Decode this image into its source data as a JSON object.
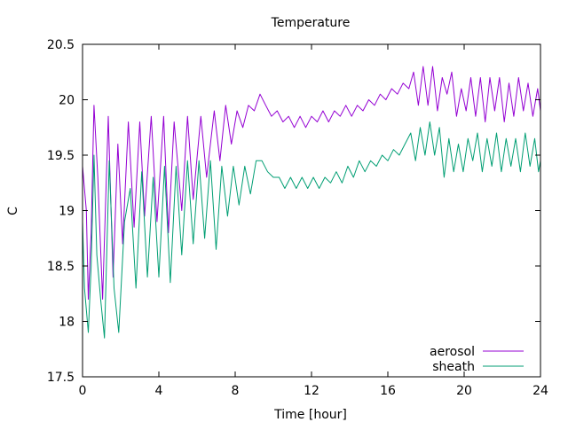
{
  "chart_data": {
    "type": "line",
    "title": "Temperature",
    "xlabel": "Time [hour]",
    "ylabel": "C",
    "xlim": [
      0,
      24
    ],
    "ylim": [
      17.5,
      20.5
    ],
    "xticks": [
      0,
      4,
      8,
      12,
      16,
      20,
      24
    ],
    "xtick_labels": [
      "0",
      "4",
      "8",
      "12",
      "16",
      "20",
      "24"
    ],
    "yticks": [
      17.5,
      18,
      18.5,
      19,
      19.5,
      20,
      20.5
    ],
    "ytick_labels": [
      "17.5",
      "18",
      "18.5",
      "19",
      "19.5",
      "20",
      "20.5"
    ],
    "grid": false,
    "legend_position": "bottom-right",
    "series": [
      {
        "name": "aerosol",
        "color": "#9400d3",
        "x": [
          0.0,
          0.2,
          0.3,
          0.45,
          0.6,
          0.8,
          1.05,
          1.35,
          1.6,
          1.85,
          2.1,
          2.4,
          2.7,
          3.0,
          3.25,
          3.6,
          3.9,
          4.25,
          4.5,
          4.8,
          5.2,
          5.5,
          5.8,
          6.2,
          6.5,
          6.9,
          7.2,
          7.5,
          7.8,
          8.1,
          8.4,
          8.7,
          9.0,
          9.3,
          9.6,
          9.9,
          10.2,
          10.5,
          10.8,
          11.1,
          11.4,
          11.7,
          12.0,
          12.3,
          12.6,
          12.9,
          13.2,
          13.5,
          13.8,
          14.1,
          14.4,
          14.7,
          15.0,
          15.3,
          15.6,
          15.9,
          16.2,
          16.5,
          16.8,
          17.1,
          17.35,
          17.6,
          17.85,
          18.1,
          18.35,
          18.6,
          18.85,
          19.1,
          19.35,
          19.6,
          19.85,
          20.1,
          20.35,
          20.6,
          20.85,
          21.1,
          21.35,
          21.6,
          21.85,
          22.1,
          22.35,
          22.6,
          22.85,
          23.1,
          23.35,
          23.6,
          23.85,
          24.0
        ],
        "y": [
          19.4,
          19.0,
          18.2,
          18.8,
          19.95,
          19.3,
          18.2,
          19.85,
          18.4,
          19.6,
          18.7,
          19.8,
          18.85,
          19.8,
          18.95,
          19.85,
          18.9,
          19.85,
          18.8,
          19.8,
          19.0,
          19.85,
          19.1,
          19.85,
          19.3,
          19.9,
          19.45,
          19.95,
          19.6,
          19.9,
          19.75,
          19.95,
          19.9,
          20.05,
          19.95,
          19.85,
          19.9,
          19.8,
          19.85,
          19.75,
          19.85,
          19.75,
          19.85,
          19.8,
          19.9,
          19.8,
          19.9,
          19.85,
          19.95,
          19.85,
          19.95,
          19.9,
          20.0,
          19.95,
          20.05,
          20.0,
          20.1,
          20.05,
          20.15,
          20.1,
          20.25,
          19.95,
          20.3,
          19.95,
          20.3,
          19.9,
          20.2,
          20.05,
          20.25,
          19.85,
          20.1,
          19.9,
          20.2,
          19.85,
          20.2,
          19.8,
          20.2,
          19.9,
          20.2,
          19.8,
          20.15,
          19.85,
          20.2,
          19.9,
          20.15,
          19.85,
          20.1,
          19.9
        ]
      },
      {
        "name": "sheath",
        "color": "#009e73",
        "x": [
          0.0,
          0.1,
          0.3,
          0.45,
          0.6,
          0.75,
          0.95,
          1.15,
          1.4,
          1.65,
          1.9,
          2.2,
          2.5,
          2.8,
          3.1,
          3.4,
          3.7,
          4.0,
          4.3,
          4.6,
          4.9,
          5.2,
          5.5,
          5.8,
          6.1,
          6.4,
          6.7,
          7.0,
          7.3,
          7.6,
          7.9,
          8.2,
          8.5,
          8.8,
          9.1,
          9.4,
          9.7,
          10.0,
          10.3,
          10.6,
          10.9,
          11.2,
          11.5,
          11.8,
          12.1,
          12.4,
          12.7,
          13.0,
          13.3,
          13.6,
          13.9,
          14.2,
          14.5,
          14.8,
          15.1,
          15.4,
          15.7,
          16.0,
          16.3,
          16.6,
          16.9,
          17.2,
          17.45,
          17.7,
          17.95,
          18.2,
          18.45,
          18.7,
          18.95,
          19.2,
          19.45,
          19.7,
          19.95,
          20.2,
          20.45,
          20.7,
          20.95,
          21.2,
          21.45,
          21.7,
          21.95,
          22.2,
          22.45,
          22.7,
          22.95,
          23.2,
          23.45,
          23.7,
          23.9,
          24.0
        ],
        "y": [
          18.9,
          18.3,
          17.9,
          18.5,
          19.5,
          18.6,
          18.2,
          17.85,
          19.45,
          18.3,
          17.9,
          18.9,
          19.2,
          18.3,
          19.35,
          18.4,
          19.3,
          18.4,
          19.4,
          18.35,
          19.4,
          18.6,
          19.45,
          18.7,
          19.45,
          18.75,
          19.45,
          18.65,
          19.4,
          18.95,
          19.4,
          19.05,
          19.4,
          19.15,
          19.45,
          19.45,
          19.35,
          19.3,
          19.3,
          19.2,
          19.3,
          19.2,
          19.3,
          19.2,
          19.3,
          19.2,
          19.3,
          19.25,
          19.35,
          19.25,
          19.4,
          19.3,
          19.45,
          19.35,
          19.45,
          19.4,
          19.5,
          19.45,
          19.55,
          19.5,
          19.6,
          19.7,
          19.45,
          19.75,
          19.5,
          19.8,
          19.5,
          19.75,
          19.3,
          19.65,
          19.35,
          19.6,
          19.35,
          19.65,
          19.45,
          19.7,
          19.35,
          19.65,
          19.4,
          19.7,
          19.35,
          19.65,
          19.4,
          19.65,
          19.35,
          19.7,
          19.4,
          19.65,
          19.35,
          19.45
        ]
      }
    ]
  }
}
